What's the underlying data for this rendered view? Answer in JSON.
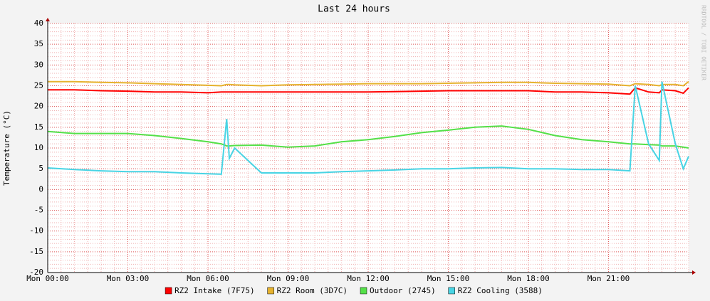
{
  "chart_data": {
    "type": "line",
    "title": "Last 24 hours",
    "y_label": "Temperature (°C)",
    "watermark": "RRDTOOL / TOBI OETIKER",
    "x": [
      0,
      1,
      2,
      3,
      4,
      5,
      6,
      6.5,
      6.7,
      6.8,
      7,
      8,
      9,
      10,
      11,
      12,
      13,
      14,
      15,
      16,
      17,
      18,
      19,
      20,
      21,
      21.8,
      22,
      22.5,
      22.9,
      23,
      23.5,
      23.8,
      24
    ],
    "xlim": [
      0,
      24
    ],
    "xticks": [
      {
        "value": 0,
        "label": "Mon 00:00"
      },
      {
        "value": 3,
        "label": "Mon 03:00"
      },
      {
        "value": 6,
        "label": "Mon 06:00"
      },
      {
        "value": 9,
        "label": "Mon 09:00"
      },
      {
        "value": 12,
        "label": "Mon 12:00"
      },
      {
        "value": 15,
        "label": "Mon 15:00"
      },
      {
        "value": 18,
        "label": "Mon 18:00"
      },
      {
        "value": 21,
        "label": "Mon 21:00"
      }
    ],
    "ylim": [
      -20,
      40
    ],
    "yticks": [
      -20,
      -15,
      -10,
      -5,
      0,
      5,
      10,
      15,
      20,
      25,
      30,
      35,
      40
    ],
    "grid": true,
    "series": [
      {
        "name": "RZ2 Intake (7F75)",
        "color": "#ff0000",
        "values": [
          24,
          24,
          23.8,
          23.7,
          23.5,
          23.5,
          23.3,
          23.5,
          23.5,
          23.5,
          23.5,
          23.5,
          23.5,
          23.5,
          23.5,
          23.5,
          23.6,
          23.7,
          23.8,
          23.8,
          23.8,
          23.8,
          23.5,
          23.5,
          23.3,
          23,
          24.5,
          23.5,
          23.3,
          24,
          23.8,
          23.2,
          24.5
        ]
      },
      {
        "name": "RZ2 Room (3D7C)",
        "color": "#e6b22e",
        "values": [
          26,
          26,
          25.8,
          25.7,
          25.5,
          25.3,
          25.1,
          25,
          25.3,
          25.3,
          25.2,
          25,
          25.2,
          25.3,
          25.4,
          25.5,
          25.5,
          25.5,
          25.6,
          25.7,
          25.8,
          25.8,
          25.6,
          25.5,
          25.4,
          25,
          25.5,
          25.3,
          25,
          25.3,
          25.3,
          25,
          26
        ]
      },
      {
        "name": "Outdoor (2745)",
        "color": "#54e048",
        "values": [
          14,
          13.5,
          13.5,
          13.5,
          13,
          12.3,
          11.5,
          11,
          10.5,
          10.5,
          10.6,
          10.7,
          10.2,
          10.5,
          11.5,
          12,
          12.8,
          13.7,
          14.3,
          15,
          15.3,
          14.5,
          13,
          12,
          11.5,
          11,
          11,
          10.8,
          10.7,
          10.5,
          10.5,
          10.2,
          10
        ]
      },
      {
        "name": "RZ2 Cooling (3588)",
        "color": "#48d4e4",
        "values": [
          5.2,
          4.8,
          4.5,
          4.3,
          4.3,
          4,
          3.8,
          3.7,
          17,
          7.5,
          10,
          4,
          4,
          4,
          4.3,
          4.5,
          4.7,
          5,
          5,
          5.2,
          5.3,
          5,
          5,
          4.8,
          4.8,
          4.5,
          25,
          11,
          7,
          26,
          11,
          5,
          8
        ]
      }
    ]
  }
}
